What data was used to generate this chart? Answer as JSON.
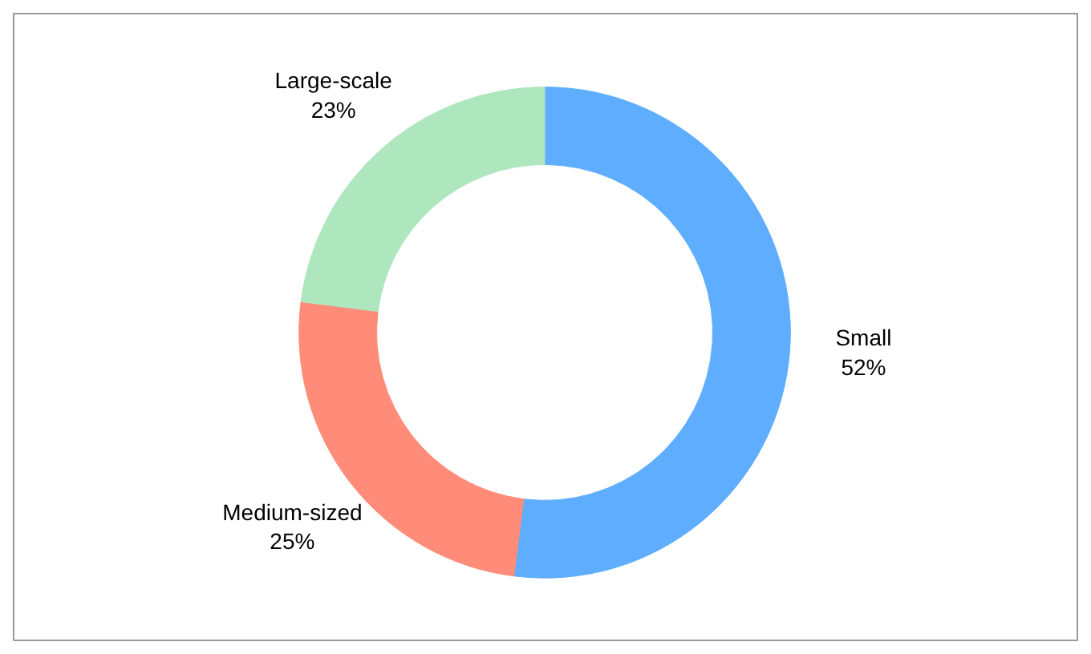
{
  "chart_data": {
    "type": "donut",
    "categories": [
      "Small",
      "Medium-sized",
      "Large-scale"
    ],
    "values": [
      52,
      25,
      23
    ],
    "value_labels": [
      "52%",
      "25%",
      "23%"
    ],
    "colors": [
      "#5eadfe",
      "#ff8c78",
      "#aee6bd"
    ]
  }
}
